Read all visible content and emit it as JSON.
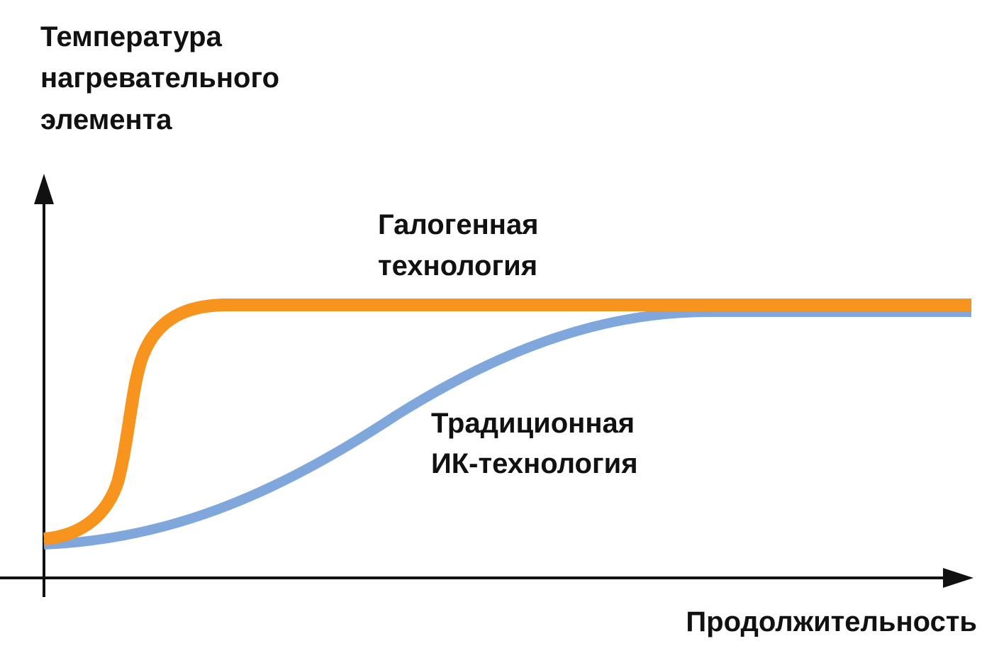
{
  "axes": {
    "y_label": [
      "Температура",
      "нагревательного",
      "элемента"
    ],
    "x_label": "Продолжительность"
  },
  "curves": [
    {
      "label": [
        "Галогенная",
        "технология"
      ]
    },
    {
      "label": [
        "Традиционная",
        "ИК-технология"
      ]
    }
  ]
}
